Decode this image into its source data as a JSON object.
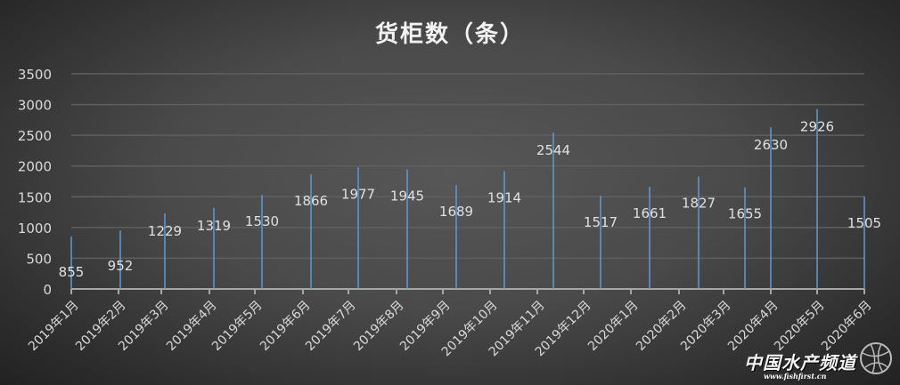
{
  "chart_data": {
    "type": "bar",
    "title": "货柜数（条）",
    "categories": [
      "2019年1月",
      "2019年2月",
      "2019年3月",
      "2019年4月",
      "2019年5月",
      "2019年6月",
      "2019年7月",
      "2019年8月",
      "2019年9月",
      "2019年10月",
      "2019年11月",
      "2019年12月",
      "2020年1月",
      "2020年2月",
      "2020年3月",
      "2020年4月",
      "2020年5月",
      "2020年6月"
    ],
    "values": [
      855,
      952,
      1229,
      1319,
      1530,
      1866,
      1977,
      1945,
      1689,
      1914,
      2544,
      1517,
      1661,
      1827,
      1655,
      2630,
      2926,
      1505
    ],
    "yticks": [
      "0",
      "500",
      "1000",
      "1500",
      "2000",
      "2500",
      "3000",
      "3500"
    ],
    "ylim": [
      0,
      3500
    ],
    "grid": true,
    "legend": "none",
    "bar_color": "#5b9bd5",
    "xlabel": "",
    "ylabel": ""
  },
  "watermark": {
    "name": "中国水产频道",
    "url": "www.fishfirst.cn"
  }
}
